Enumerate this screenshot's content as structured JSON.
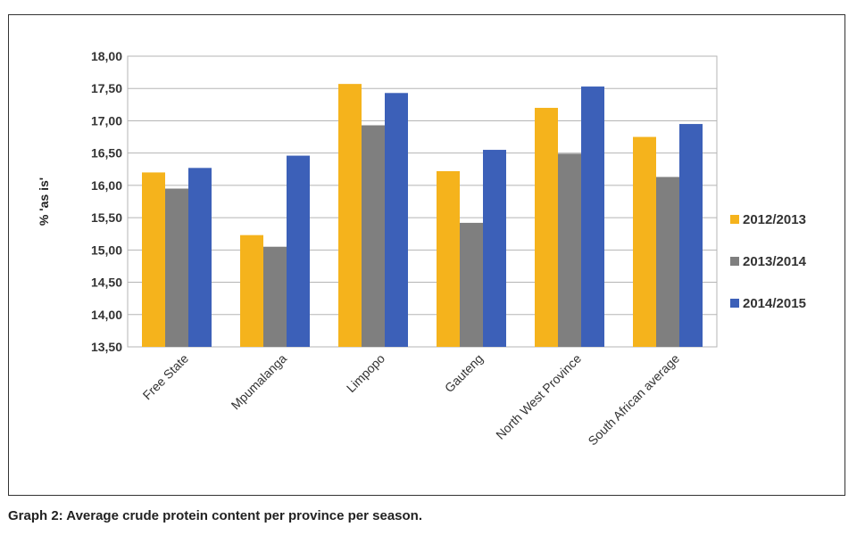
{
  "caption": "Graph 2: Average crude protein content per province per season.",
  "chart_data": {
    "type": "bar",
    "title": "",
    "xlabel": "",
    "ylabel": "% 'as is'",
    "ylim": [
      13.5,
      18.0
    ],
    "y_ticks": [
      "18,00",
      "17,50",
      "17,00",
      "16,50",
      "16,00",
      "15,50",
      "15,00",
      "14,50",
      "14,00",
      "13,50"
    ],
    "y_tick_values": [
      18.0,
      17.5,
      17.0,
      16.5,
      16.0,
      15.5,
      15.0,
      14.5,
      14.0,
      13.5
    ],
    "grid": "horizontal",
    "legend_position": "right",
    "categories": [
      "Free State",
      "Mpumalanga",
      "Limpopo",
      "Gauteng",
      "North West Province",
      "South African average"
    ],
    "series": [
      {
        "name": "2012/2013",
        "color": "#f5b31c",
        "values": [
          16.2,
          15.23,
          17.57,
          16.22,
          17.2,
          16.75
        ]
      },
      {
        "name": "2013/2014",
        "color": "#7f7f7f",
        "values": [
          15.95,
          15.05,
          16.93,
          15.42,
          16.49,
          16.13
        ]
      },
      {
        "name": "2014/2015",
        "color": "#3c60b8",
        "values": [
          16.27,
          16.46,
          17.43,
          16.55,
          17.53,
          16.95
        ]
      }
    ]
  }
}
